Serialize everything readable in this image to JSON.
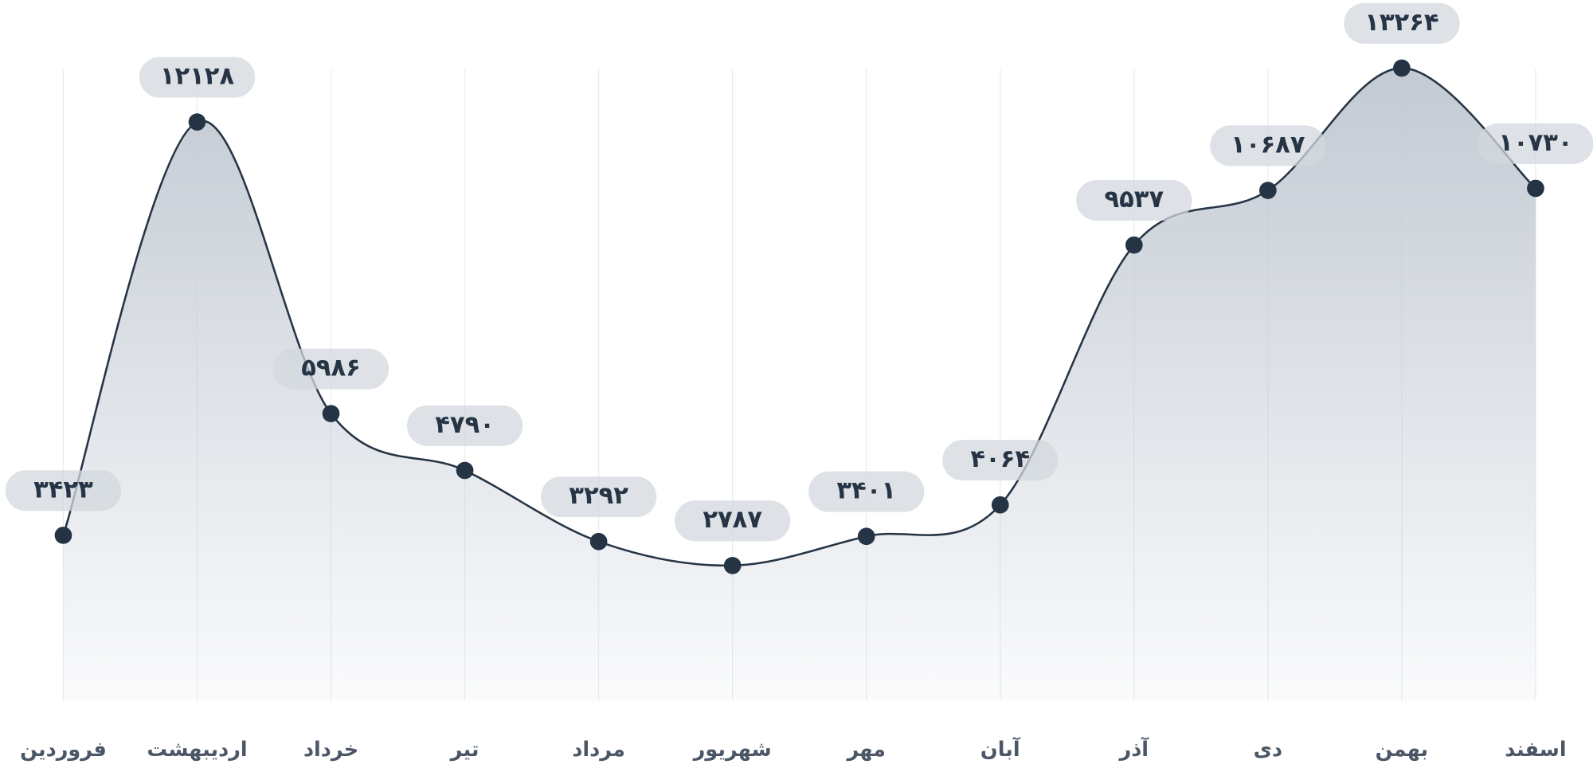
{
  "chart_data": {
    "type": "area",
    "categories": [
      "فروردین",
      "اردیبهشت",
      "خرداد",
      "تیر",
      "مرداد",
      "شهریور",
      "مهر",
      "آبان",
      "آذر",
      "دی",
      "بهمن",
      "اسفند"
    ],
    "values": [
      3423,
      12128,
      5986,
      4790,
      3292,
      2787,
      3401,
      4064,
      9537,
      10687,
      13264,
      10730
    ],
    "value_labels": [
      "۳۴۲۳",
      "۱۲۱۲۸",
      "۵۹۸۶",
      "۴۷۹۰",
      "۳۲۹۲",
      "۲۷۸۷",
      "۳۴۰۱",
      "۴۰۶۴",
      "۹۵۳۷",
      "۱۰۶۸۷",
      "۱۳۲۶۴",
      "۱۰۷۳۰"
    ],
    "color": "#253444",
    "grid": true
  }
}
